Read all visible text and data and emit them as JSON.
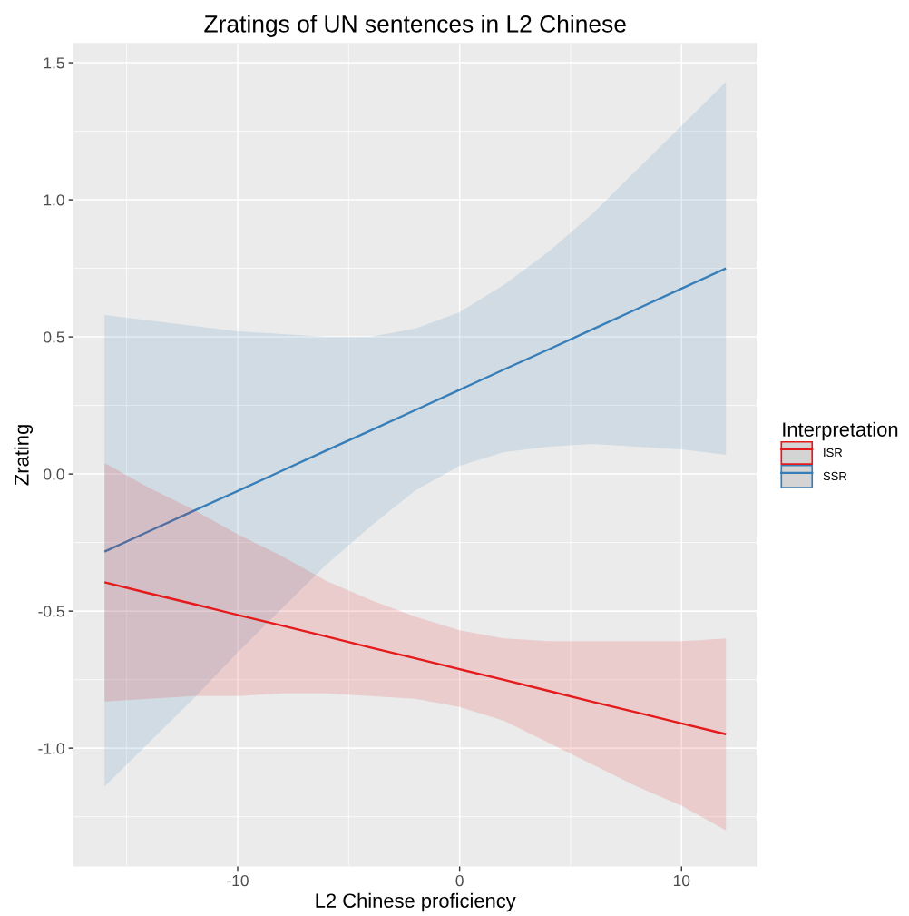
{
  "chart_data": {
    "type": "line",
    "title": "Zratings of UN sentences in L2 Chinese",
    "xlabel": "L2 Chinese proficiency",
    "ylabel": "Zrating",
    "legend_title": "Interpretation",
    "x": [
      -16,
      -14,
      -12,
      -10,
      -8,
      -6,
      -4,
      -2,
      0,
      2,
      4,
      6,
      8,
      10,
      12
    ],
    "series": [
      {
        "name": "ISR",
        "color": "#e41a1c",
        "values": [
          -0.395,
          -0.435,
          -0.474,
          -0.514,
          -0.553,
          -0.593,
          -0.633,
          -0.672,
          -0.712,
          -0.751,
          -0.791,
          -0.831,
          -0.87,
          -0.91,
          -0.949
        ],
        "lower": [
          -0.83,
          -0.82,
          -0.81,
          -0.81,
          -0.8,
          -0.8,
          -0.81,
          -0.82,
          -0.85,
          -0.9,
          -0.98,
          -1.06,
          -1.14,
          -1.21,
          -1.3
        ],
        "upper": [
          0.04,
          -0.05,
          -0.13,
          -0.22,
          -0.3,
          -0.39,
          -0.46,
          -0.52,
          -0.57,
          -0.6,
          -0.61,
          -0.61,
          -0.61,
          -0.61,
          -0.6
        ]
      },
      {
        "name": "SSR",
        "color": "#377eb8",
        "values": [
          -0.283,
          -0.209,
          -0.135,
          -0.062,
          0.012,
          0.086,
          0.159,
          0.233,
          0.307,
          0.381,
          0.454,
          0.528,
          0.602,
          0.676,
          0.75
        ],
        "lower": [
          -1.14,
          -0.98,
          -0.82,
          -0.65,
          -0.49,
          -0.33,
          -0.19,
          -0.06,
          0.03,
          0.08,
          0.1,
          0.11,
          0.1,
          0.09,
          0.07
        ],
        "upper": [
          0.58,
          0.56,
          0.54,
          0.52,
          0.51,
          0.5,
          0.5,
          0.53,
          0.59,
          0.69,
          0.81,
          0.95,
          1.11,
          1.27,
          1.43
        ]
      }
    ],
    "xlim": [
      -17.4,
      13.4
    ],
    "ylim": [
      -1.43,
      1.57
    ],
    "xticks": [
      -10,
      0,
      10
    ],
    "yticks": [
      {
        "value": -1,
        "label": "-1.0"
      },
      -0.5,
      {
        "value": 0,
        "label": "0.0"
      },
      0.5,
      {
        "value": 1,
        "label": "1.0"
      },
      1.5
    ],
    "grid": true,
    "legend": "right"
  }
}
